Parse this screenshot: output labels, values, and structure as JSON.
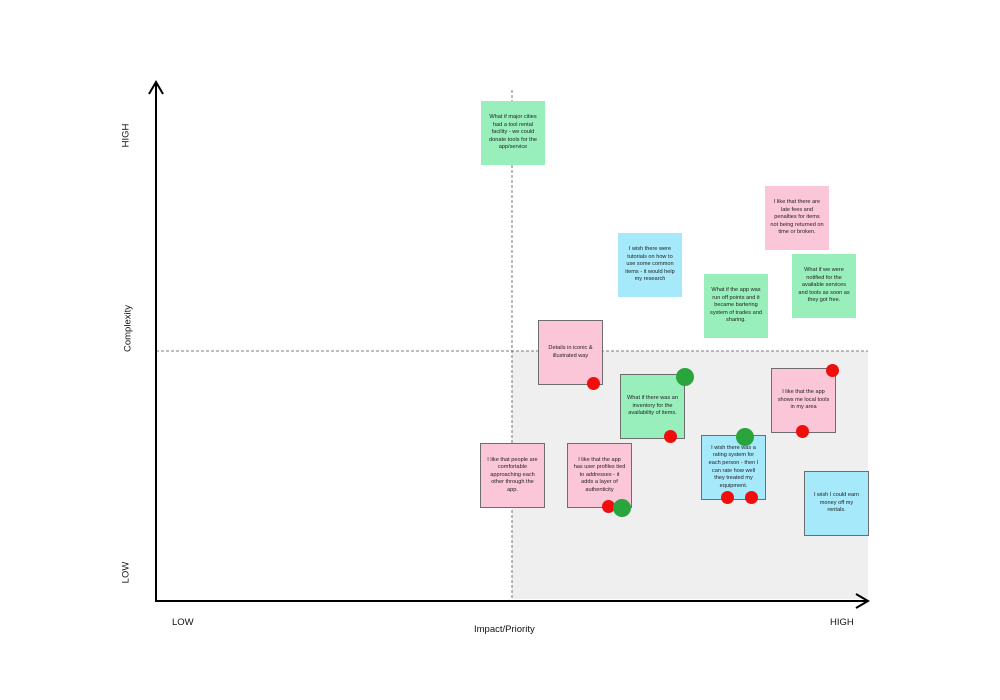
{
  "axes": {
    "x_label": "Impact/Priority",
    "x_low": "LOW",
    "x_high": "HIGH",
    "y_label": "Complexity",
    "y_low": "LOW",
    "y_high": "HIGH"
  },
  "colors": {
    "pink": "#fcc6d9",
    "green": "#98efbc",
    "blue": "#a6e9fb",
    "red_dot": "#ee0e0e",
    "green_dot": "#2aa43c",
    "shade": "#efefef"
  },
  "notes": [
    {
      "text": "What if major cities had a tool rental facility - we could donate tools for the app/service",
      "color": "green"
    },
    {
      "text": "I like that there are late fees and penalties for items not being returned on time or broken.",
      "color": "pink"
    },
    {
      "text": "I wish there were tutorials on how to use some common items - it would help my research",
      "color": "blue"
    },
    {
      "text": "What if the app was run off points and it became bartering system of trades and sharing.",
      "color": "green"
    },
    {
      "text": "What if we were notified for the available services and tools as soon as they got free.",
      "color": "green"
    },
    {
      "text": "Details in iconic & illustrated way",
      "color": "pink"
    },
    {
      "text": "What if there was an inventory for the availability of items.",
      "color": "green"
    },
    {
      "text": "I like that the app shows me local tools in my area",
      "color": "pink"
    },
    {
      "text": "I wish there was a rating system for each person - then I can rate how well they treated my equipment.",
      "color": "blue"
    },
    {
      "text": "I like that people are comfortable approaching each other through the app.",
      "color": "pink"
    },
    {
      "text": "I like that the app has user profiles tied to addresses - it adds a layer of authenticity",
      "color": "pink"
    },
    {
      "text": "I wish I could earn money off my rentals.",
      "color": "blue"
    }
  ]
}
